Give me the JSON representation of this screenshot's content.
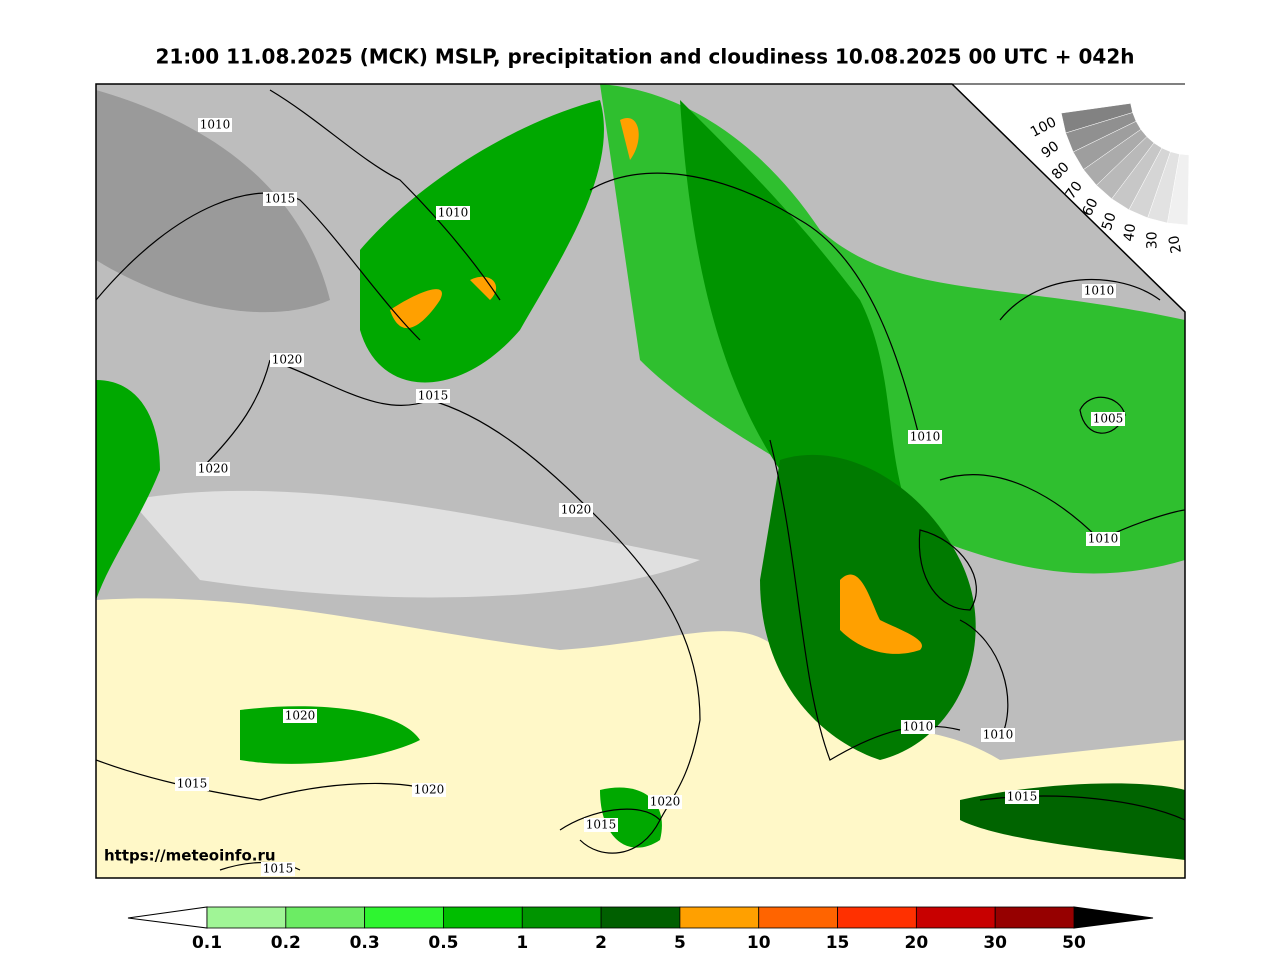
{
  "title": "21:00 11.08.2025 (MCK) MSLP, precipitation and cloudiness 10.08.2025 00 UTC + 042h",
  "source_url": "https://meteoinfo.ru",
  "isobar_labels": [
    1010,
    1015,
    1010,
    1020,
    1015,
    1020,
    1020,
    1010,
    1010,
    1005,
    1010,
    1020,
    1010,
    1010,
    1015,
    1015,
    1020,
    1020,
    1015,
    1015
  ],
  "cloudiness_scale": {
    "labels": [
      100,
      90,
      80,
      70,
      60,
      50,
      40,
      30,
      20
    ]
  },
  "precipitation_scale": {
    "labels": [
      0.1,
      0.2,
      0.3,
      0.5,
      1,
      2,
      5,
      10,
      15,
      20,
      30,
      50
    ],
    "colors": [
      "#a0f596",
      "#6cec64",
      "#2ef530",
      "#00be00",
      "#009400",
      "#005f00",
      "#ffa000",
      "#ff6400",
      "#ff3000",
      "#c80000",
      "#960000"
    ]
  }
}
